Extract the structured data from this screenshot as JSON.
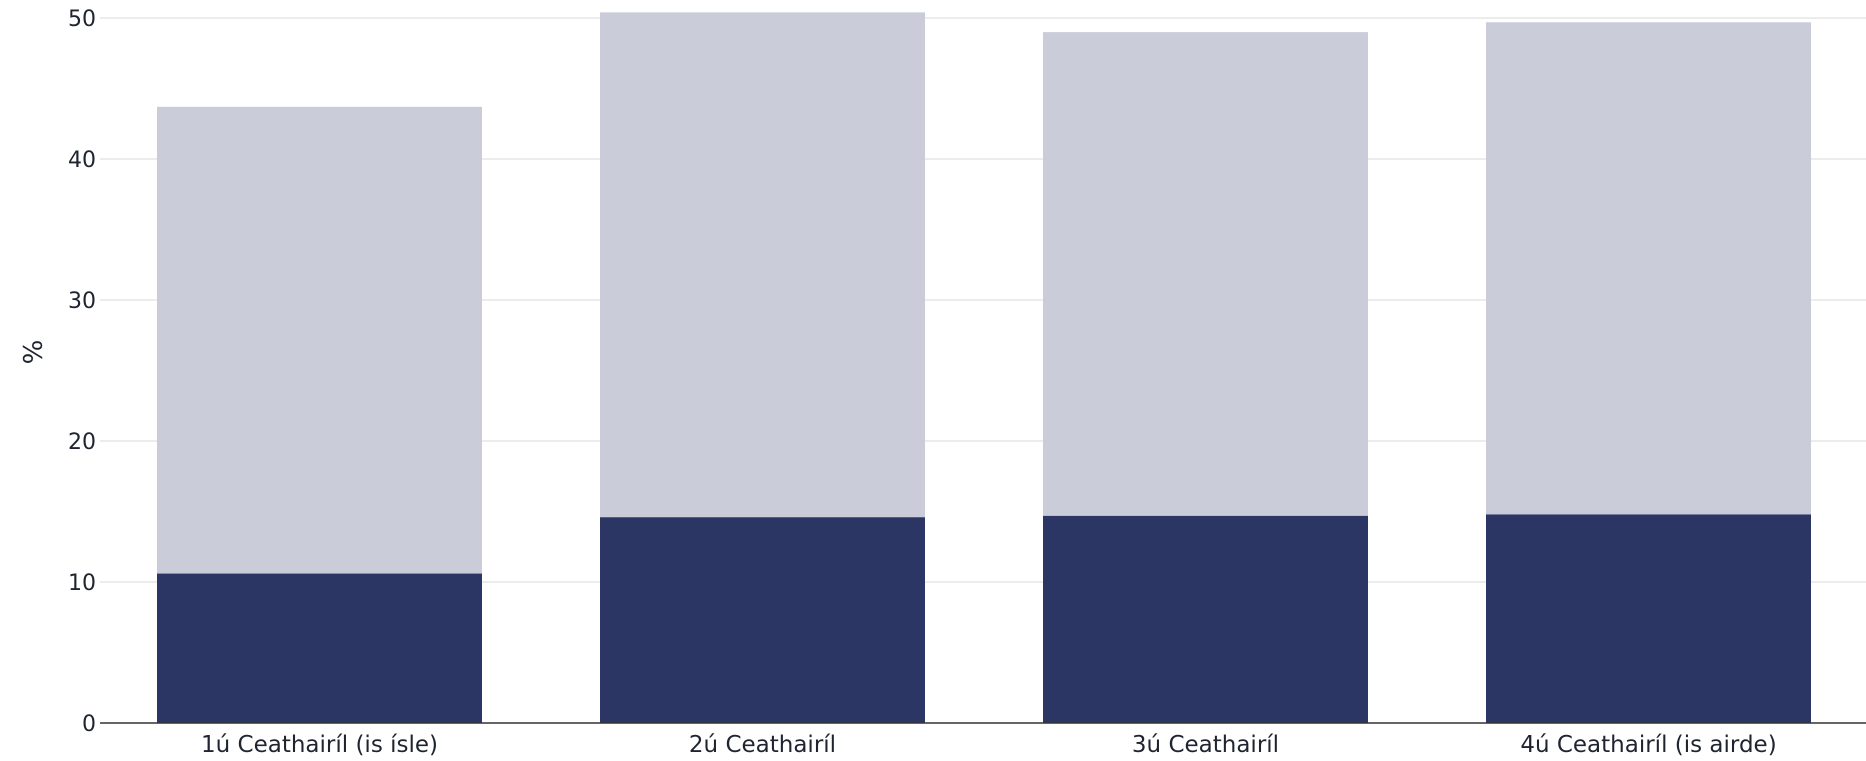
{
  "chart_data": {
    "type": "bar",
    "stacked": true,
    "categories": [
      "1ú Ceathairíl (is ísle)",
      "2ú Ceathairíl",
      "3ú Ceathairíl",
      "4ú Ceathairíl (is airde)"
    ],
    "series": [
      {
        "values": [
          10.6,
          14.6,
          14.7,
          14.8
        ],
        "color": "#2b3664"
      },
      {
        "values": [
          33.1,
          35.8,
          34.3,
          34.9
        ],
        "color": "#cacdd9"
      }
    ],
    "ylabel": "%",
    "xlabel": "",
    "ylim": [
      0,
      50
    ],
    "yticks": [
      0,
      10,
      20,
      30,
      40,
      50
    ],
    "grid": true
  }
}
